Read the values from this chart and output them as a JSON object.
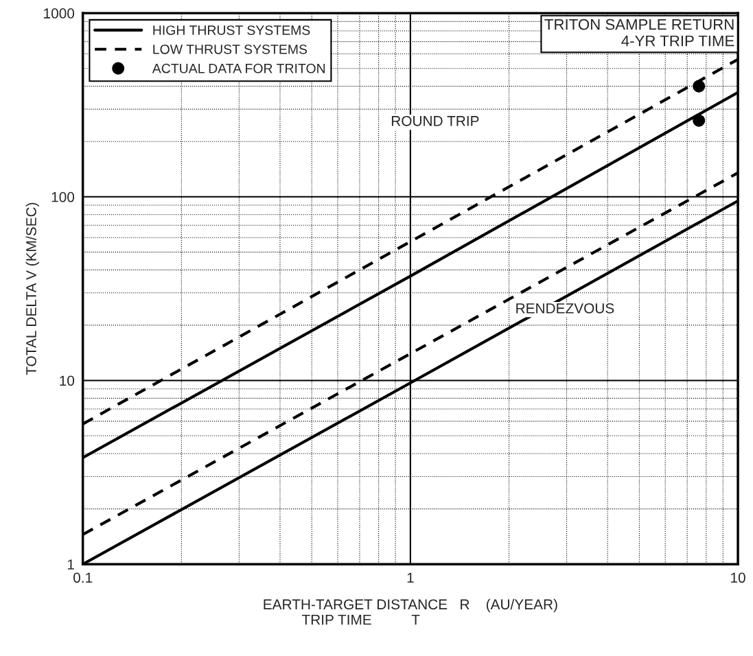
{
  "chart_data": {
    "type": "line",
    "xlabel": "EARTH-TARGET DISTANCE   R    (AU/YEAR)\nTRIP TIME          T                         ",
    "ylabel": "TOTAL DELTA V (KM/SEC)",
    "log": "xy",
    "grid": true,
    "legend": "top left",
    "xlim": [
      0.1,
      10
    ],
    "ylim": [
      1,
      1000
    ],
    "xticks": [
      0.1,
      1,
      10
    ],
    "yticks": [
      1,
      10,
      100,
      1000
    ],
    "series": [
      {
        "name": "HIGH THRUST SYSTEMS",
        "line_style": "solid",
        "color": "#000000",
        "x": [
          0.1,
          1,
          10
        ],
        "values": [
          1,
          9.7,
          95
        ]
      },
      {
        "line_style": "solid",
        "color": "#000000",
        "x": [
          0.1,
          1,
          10
        ],
        "values": [
          3.8,
          37,
          370
        ]
      },
      {
        "name": "LOW THRUST SYSTEMS",
        "line_style": "dashed",
        "color": "#000000",
        "x": [
          0.1,
          1,
          10
        ],
        "values": [
          1.45,
          14,
          135
        ]
      },
      {
        "line_style": "dashed",
        "color": "#000000",
        "x": [
          0.1,
          1,
          10
        ],
        "values": [
          5.8,
          57,
          560
        ]
      },
      {
        "name": "ACTUAL DATA FOR TRITON",
        "type": "scatter",
        "marker": "circle",
        "color": "#000000",
        "x": [
          7.6,
          7.6
        ],
        "values": [
          400,
          260
        ]
      }
    ],
    "annotations": [
      "TRITON SAMPLE RETURN\n4-YR TRIP TIME",
      "ROUND TRIP",
      "RENDEZVOUS"
    ]
  }
}
